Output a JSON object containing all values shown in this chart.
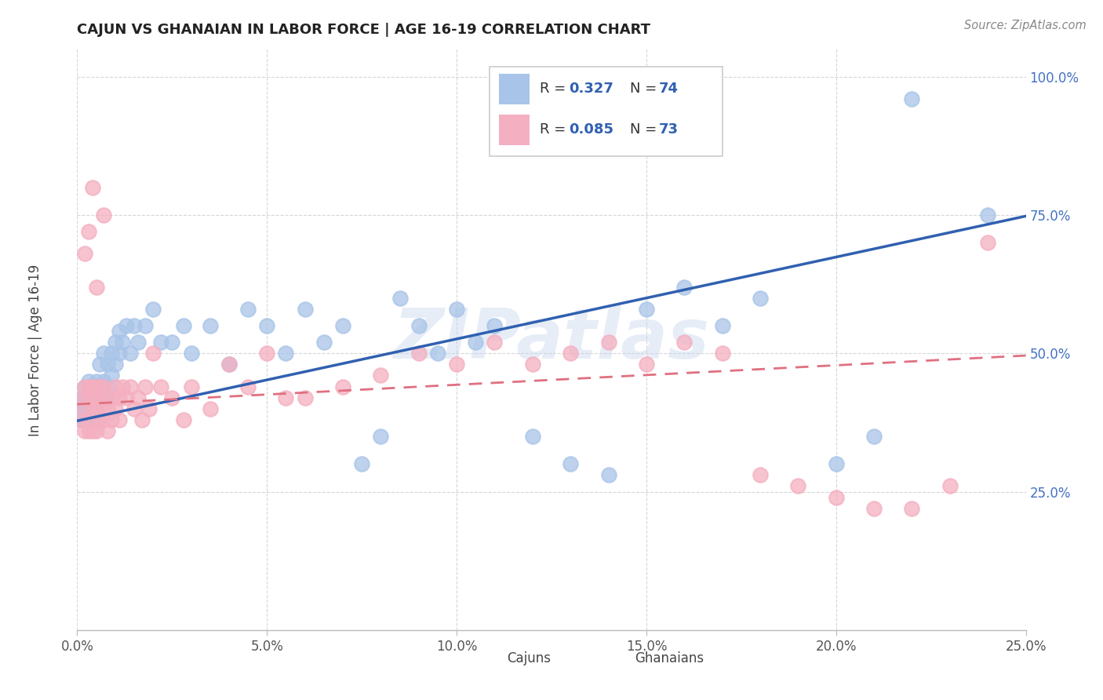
{
  "title": "CAJUN VS GHANAIAN IN LABOR FORCE | AGE 16-19 CORRELATION CHART",
  "source": "Source: ZipAtlas.com",
  "ylabel_label": "In Labor Force | Age 16-19",
  "legend_cajuns_r": "0.327",
  "legend_cajuns_n": "74",
  "legend_ghanaians_r": "0.085",
  "legend_ghanaians_n": "73",
  "cajun_color": "#a8c4e8",
  "ghanaian_color": "#f4afc0",
  "cajun_line_color": "#3060b0",
  "ghanaian_line_color": "#e07080",
  "watermark_color": "#c8d8ee",
  "watermark_text": "ZIPatlas",
  "xticks": [
    0.0,
    0.05,
    0.1,
    0.15,
    0.2,
    0.25
  ],
  "xlim": [
    0.0,
    0.25
  ],
  "ylim": [
    0.0,
    1.05
  ],
  "yticks": [
    0.25,
    0.5,
    0.75,
    1.0
  ],
  "ytick_labels": [
    "25.0%",
    "50.0%",
    "75.0%",
    "100.0%"
  ],
  "xtick_labels": [
    "0.0%",
    "5.0%",
    "10.0%",
    "15.0%",
    "20.0%",
    "25.0%"
  ],
  "cajun_x": [
    0.001,
    0.001,
    0.001,
    0.002,
    0.002,
    0.002,
    0.002,
    0.003,
    0.003,
    0.003,
    0.003,
    0.003,
    0.004,
    0.004,
    0.004,
    0.004,
    0.005,
    0.005,
    0.005,
    0.005,
    0.005,
    0.006,
    0.006,
    0.006,
    0.007,
    0.007,
    0.007,
    0.008,
    0.008,
    0.008,
    0.009,
    0.009,
    0.01,
    0.01,
    0.011,
    0.011,
    0.012,
    0.013,
    0.014,
    0.015,
    0.016,
    0.018,
    0.02,
    0.022,
    0.025,
    0.028,
    0.03,
    0.035,
    0.04,
    0.045,
    0.05,
    0.055,
    0.06,
    0.065,
    0.07,
    0.075,
    0.08,
    0.085,
    0.09,
    0.095,
    0.1,
    0.105,
    0.11,
    0.12,
    0.13,
    0.14,
    0.15,
    0.16,
    0.17,
    0.18,
    0.2,
    0.21,
    0.22,
    0.24
  ],
  "cajun_y": [
    0.42,
    0.4,
    0.38,
    0.44,
    0.42,
    0.38,
    0.4,
    0.45,
    0.42,
    0.4,
    0.38,
    0.43,
    0.42,
    0.4,
    0.44,
    0.38,
    0.45,
    0.42,
    0.4,
    0.43,
    0.38,
    0.48,
    0.44,
    0.42,
    0.5,
    0.45,
    0.42,
    0.48,
    0.44,
    0.42,
    0.5,
    0.46,
    0.52,
    0.48,
    0.54,
    0.5,
    0.52,
    0.55,
    0.5,
    0.55,
    0.52,
    0.55,
    0.58,
    0.52,
    0.52,
    0.55,
    0.5,
    0.55,
    0.48,
    0.58,
    0.55,
    0.5,
    0.58,
    0.52,
    0.55,
    0.3,
    0.35,
    0.6,
    0.55,
    0.5,
    0.58,
    0.52,
    0.55,
    0.35,
    0.3,
    0.28,
    0.58,
    0.62,
    0.55,
    0.6,
    0.3,
    0.35,
    0.96,
    0.75
  ],
  "ghanaian_x": [
    0.001,
    0.001,
    0.002,
    0.002,
    0.002,
    0.003,
    0.003,
    0.003,
    0.003,
    0.004,
    0.004,
    0.004,
    0.004,
    0.005,
    0.005,
    0.005,
    0.005,
    0.006,
    0.006,
    0.006,
    0.007,
    0.007,
    0.007,
    0.008,
    0.008,
    0.009,
    0.009,
    0.01,
    0.01,
    0.011,
    0.011,
    0.012,
    0.013,
    0.014,
    0.015,
    0.016,
    0.017,
    0.018,
    0.019,
    0.02,
    0.022,
    0.025,
    0.028,
    0.03,
    0.035,
    0.04,
    0.045,
    0.05,
    0.055,
    0.06,
    0.07,
    0.08,
    0.09,
    0.1,
    0.11,
    0.12,
    0.13,
    0.14,
    0.15,
    0.16,
    0.17,
    0.18,
    0.19,
    0.2,
    0.21,
    0.22,
    0.23,
    0.24,
    0.002,
    0.003,
    0.004,
    0.005,
    0.007
  ],
  "ghanaian_y": [
    0.38,
    0.42,
    0.4,
    0.36,
    0.44,
    0.42,
    0.38,
    0.44,
    0.36,
    0.4,
    0.44,
    0.36,
    0.42,
    0.4,
    0.44,
    0.36,
    0.42,
    0.4,
    0.44,
    0.38,
    0.42,
    0.38,
    0.44,
    0.4,
    0.36,
    0.42,
    0.38,
    0.44,
    0.4,
    0.42,
    0.38,
    0.44,
    0.42,
    0.44,
    0.4,
    0.42,
    0.38,
    0.44,
    0.4,
    0.5,
    0.44,
    0.42,
    0.38,
    0.44,
    0.4,
    0.48,
    0.44,
    0.5,
    0.42,
    0.42,
    0.44,
    0.46,
    0.5,
    0.48,
    0.52,
    0.48,
    0.5,
    0.52,
    0.48,
    0.52,
    0.5,
    0.28,
    0.26,
    0.24,
    0.22,
    0.22,
    0.26,
    0.7,
    0.68,
    0.72,
    0.8,
    0.62,
    0.75
  ],
  "cajun_line_x0": 0.0,
  "cajun_line_y0": 0.378,
  "cajun_line_x1": 0.25,
  "cajun_line_y1": 0.748,
  "ghanaian_line_x0": 0.0,
  "ghanaian_line_y0": 0.408,
  "ghanaian_line_x1": 0.25,
  "ghanaian_line_y1": 0.496
}
